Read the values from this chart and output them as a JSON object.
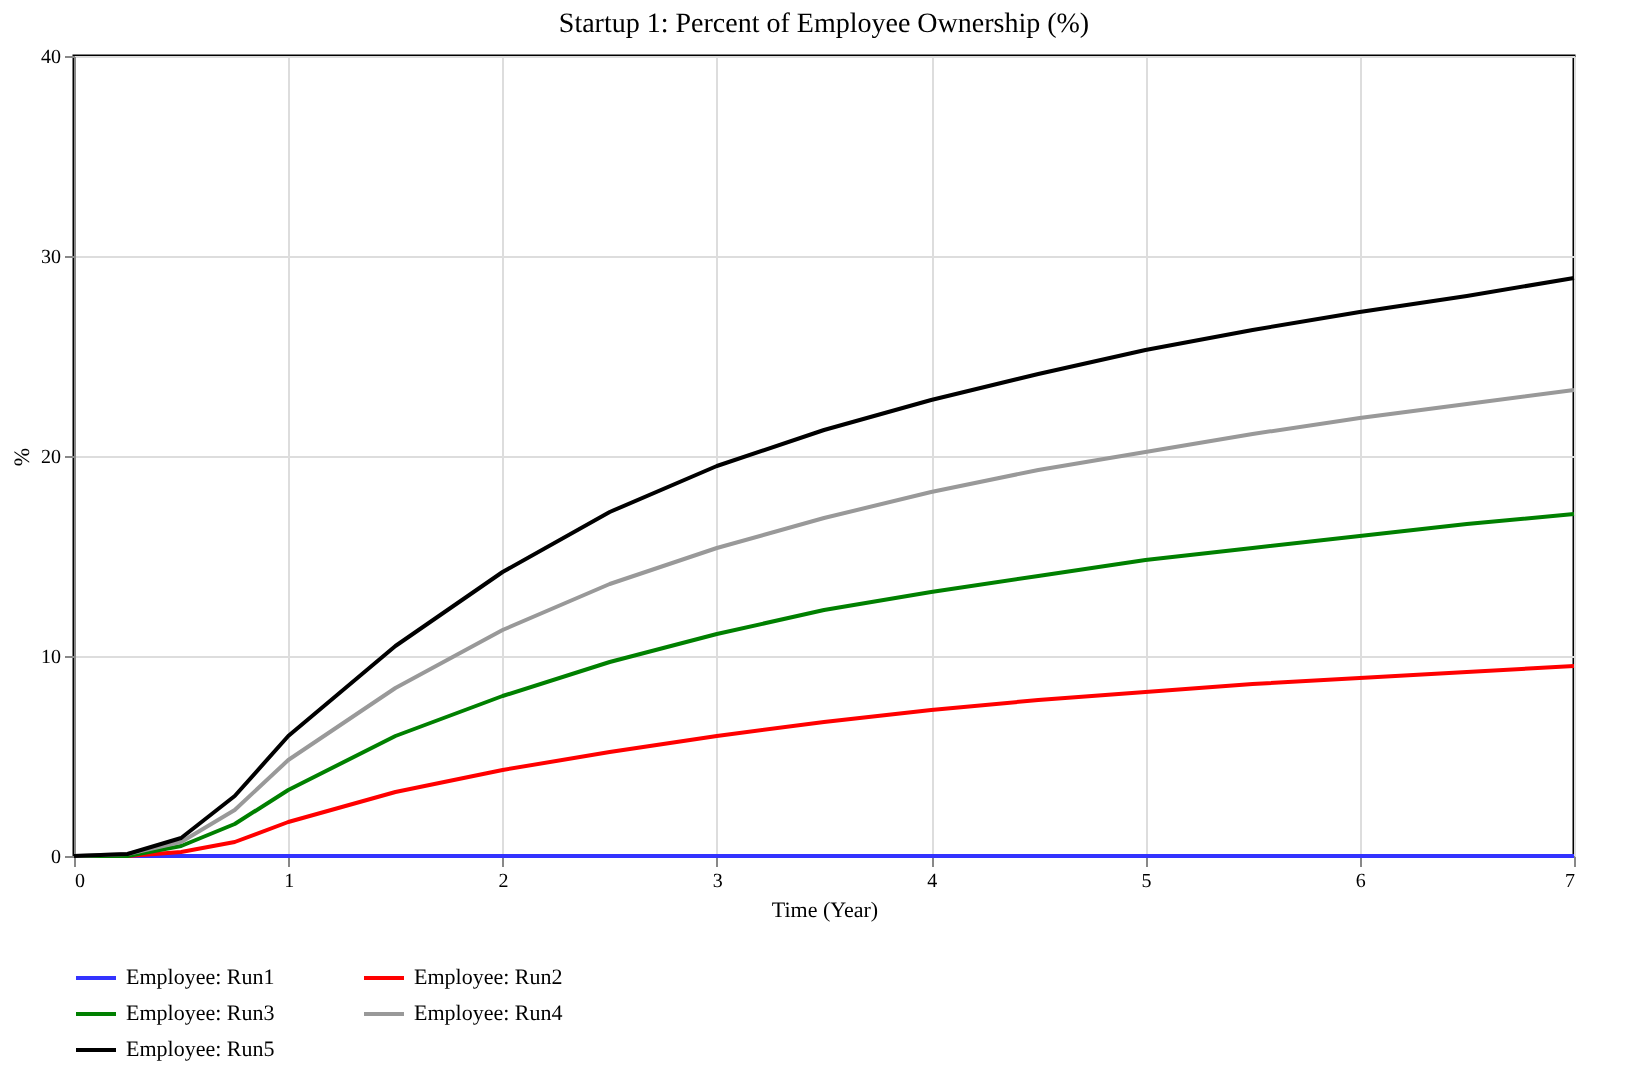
{
  "chart_data": {
    "type": "line",
    "title": "Startup 1: Percent of Employee Ownership (%)",
    "xlabel": "Time (Year)",
    "ylabel": "%",
    "x": [
      0,
      0.25,
      0.5,
      0.75,
      1,
      1.5,
      2,
      2.5,
      3,
      3.5,
      4,
      4.5,
      5,
      5.5,
      6,
      6.5,
      7
    ],
    "xlim": [
      0,
      7
    ],
    "xticks": [
      0,
      1,
      2,
      3,
      4,
      5,
      6,
      7
    ],
    "ylim": [
      0,
      40
    ],
    "yticks": [
      0,
      10,
      20,
      30,
      40
    ],
    "grid": true,
    "legend": "bottom",
    "marker": "none",
    "line_style": "solid",
    "series": [
      {
        "name": "Employee: Run1",
        "color": "#3333ff",
        "values": [
          0,
          0,
          0,
          0,
          0,
          0,
          0,
          0,
          0,
          0,
          0,
          0,
          0,
          0,
          0,
          0,
          0
        ]
      },
      {
        "name": "Employee: Run2",
        "color": "#ff0000",
        "values": [
          0,
          0,
          0.2,
          0.7,
          1.7,
          3.2,
          4.3,
          5.2,
          6,
          6.7,
          7.3,
          7.8,
          8.2,
          8.6,
          8.9,
          9.2,
          9.5
        ]
      },
      {
        "name": "Employee: Run3",
        "color": "#008000",
        "values": [
          0,
          0,
          0.5,
          1.6,
          3.3,
          6,
          8,
          9.7,
          11.1,
          12.3,
          13.2,
          14,
          14.8,
          15.4,
          16,
          16.6,
          17.1
        ]
      },
      {
        "name": "Employee: Run4",
        "color": "#999999",
        "values": [
          0,
          0.1,
          0.7,
          2.3,
          4.8,
          8.4,
          11.3,
          13.6,
          15.4,
          16.9,
          18.2,
          19.3,
          20.2,
          21.1,
          21.9,
          22.6,
          23.3
        ]
      },
      {
        "name": "Employee: Run5",
        "color": "#000000",
        "values": [
          0,
          0.1,
          0.9,
          3,
          6,
          10.5,
          14.2,
          17.2,
          19.5,
          21.3,
          22.8,
          24.1,
          25.3,
          26.3,
          27.2,
          28,
          28.9
        ]
      }
    ]
  }
}
